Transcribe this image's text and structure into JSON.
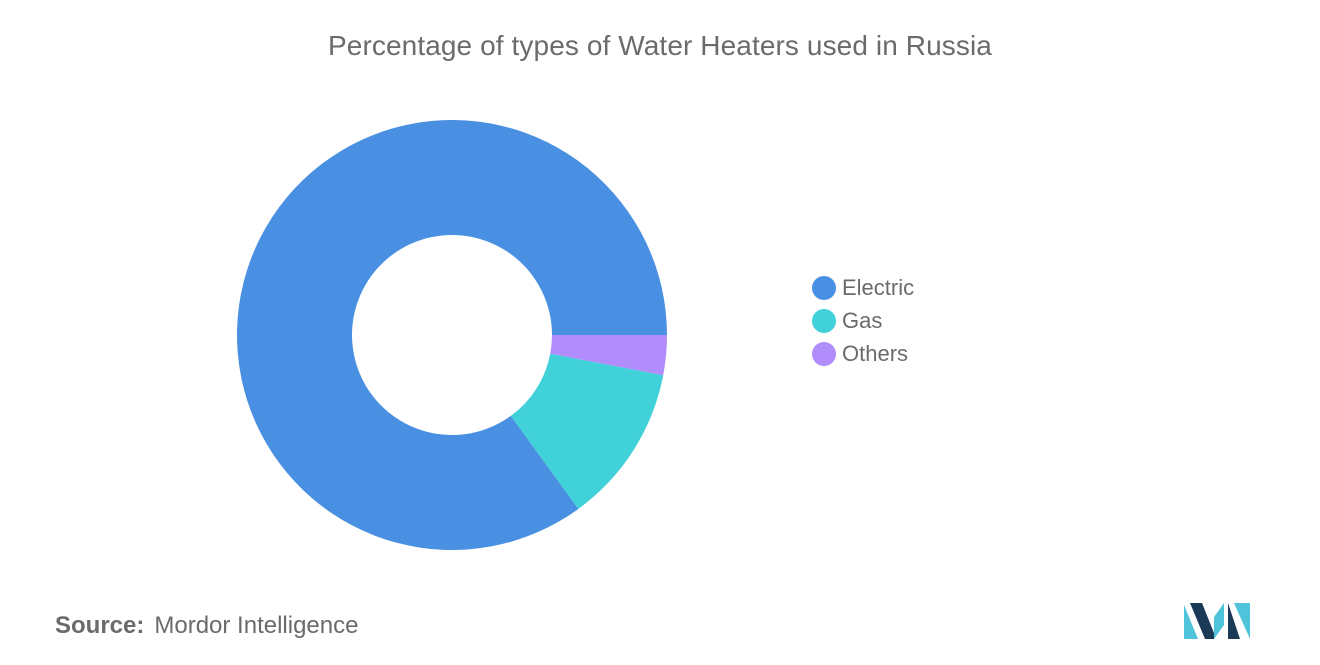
{
  "chart_data": {
    "type": "pie",
    "variant": "donut",
    "title": "Percentage of types of Water Heaters used in Russia",
    "categories": [
      "Electric",
      "Gas",
      "Others"
    ],
    "values": [
      85,
      12,
      3
    ],
    "colors": [
      "#4a90e2",
      "#41d1d9",
      "#b18cfb"
    ],
    "legend_position": "right"
  },
  "source": {
    "label": "Source:",
    "text": "Mordor Intelligence"
  },
  "logo": {
    "icon": "mordor-intelligence-logo",
    "colors": [
      "#1b3a57",
      "#4fc3d9"
    ]
  }
}
